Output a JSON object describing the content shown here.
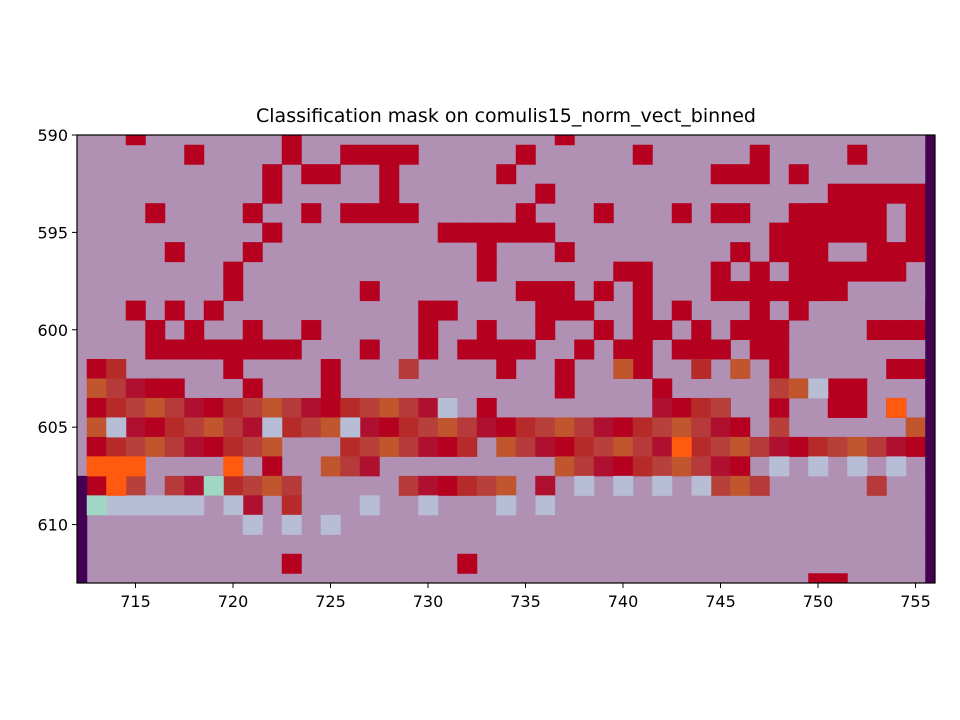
{
  "chart_data": {
    "type": "heatmap",
    "title": "Classification mask on comulis15_norm_vect_binned",
    "xlabel": "",
    "ylabel": "",
    "x_range": [
      712,
      756
    ],
    "y_range": [
      590,
      613
    ],
    "y_inverted": true,
    "x_ticks": [
      "715",
      "720",
      "725",
      "730",
      "735",
      "740",
      "745",
      "750",
      "755"
    ],
    "y_ticks": [
      "590",
      "595",
      "600",
      "605",
      "610"
    ],
    "colors": {
      "background": "#b091b4",
      "mask": "#b5001f",
      "dark_band": "#440154",
      "pale_blue": "#b7bdd4",
      "mint": "#9fd6c4",
      "orange": "#ff5a10"
    },
    "mask_rows": [
      "..#.......#.............#...................",
      ".....#....#..####.....#.....#.....#....#....",
      ".........#.##..#.....#..........###.#.......",
      ".........#.....#.......#..................#.",
      "...#....#..#.####.....#...#...#.##...#....##",
      ".........#........######.............#......",
      "....#...#...........#...#........#..........",
      ".......#............#......##...#.#.........",
      ".......#......#.......###.#.#...###.###.....",
      "......#..........##....###..#.#...#........#",
      "........#..#.....#..#..#..#.##.#..#.....###.",
      ".....##..##......#.####....##.###..#........",
      ".......#....#........#..#...#......#.....##.",
      "...##...#...#...........#....#........#.....",
      "...##...............#...........#..#..##.#..",
      "............................................",
      "............................................",
      "............................................",
      "............................................",
      "............................................",
      "............................................",
      "............................................",
      "..........#........#........................",
      ".....................................##....."
    ],
    "mask_rows_overlay": [
      "............................................",
      "............................................",
      "............................................",
      "......................................####..",
      "....................................#####..#",
      "...................................######.##",
      "...................................###..###.",
      "....................................######.#",
      "...................................###......",
      "..#.#.............................#.#.......",
      "...#.#...........................#.#........",
      "...##..##.....#..........#.....##.#.........",
      "##..............#..........#...#.#..........",
      "####...............................###.#...#",
      "###################..........####...........",
      "##################################.#......#.",
      "##########...#######.######################.",
      "##.......#..###.........##########.........#",
      "###.#######.....######.#.......####.....#...",
      ".......##.#............#....................",
      "............................................",
      "............................................",
      "............................................",
      "............................................"
    ]
  }
}
